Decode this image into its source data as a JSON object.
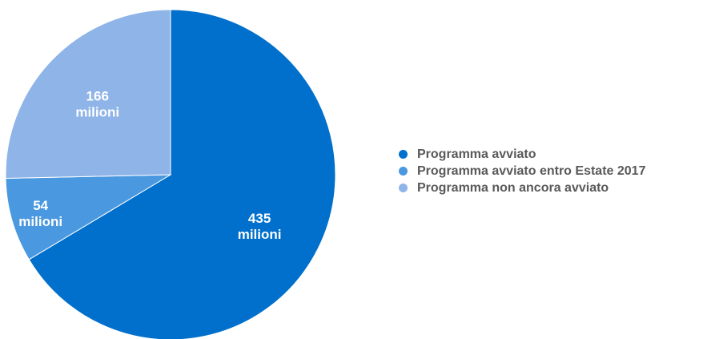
{
  "chart_data": {
    "type": "pie",
    "title": "",
    "legend_position": "right",
    "slices": [
      {
        "name": "Programma avviato",
        "value": 435,
        "label_value": "435",
        "label_unit": "milioni",
        "color": "#0070CC"
      },
      {
        "name": "Programma avviato entro Estate 2017",
        "value": 54,
        "label_value": "54",
        "label_unit": "milioni",
        "color": "#4A98DF"
      },
      {
        "name": "Programma non ancora avviato",
        "value": 166,
        "label_value": "166",
        "label_unit": "milioni",
        "color": "#8FB4E8"
      }
    ]
  }
}
